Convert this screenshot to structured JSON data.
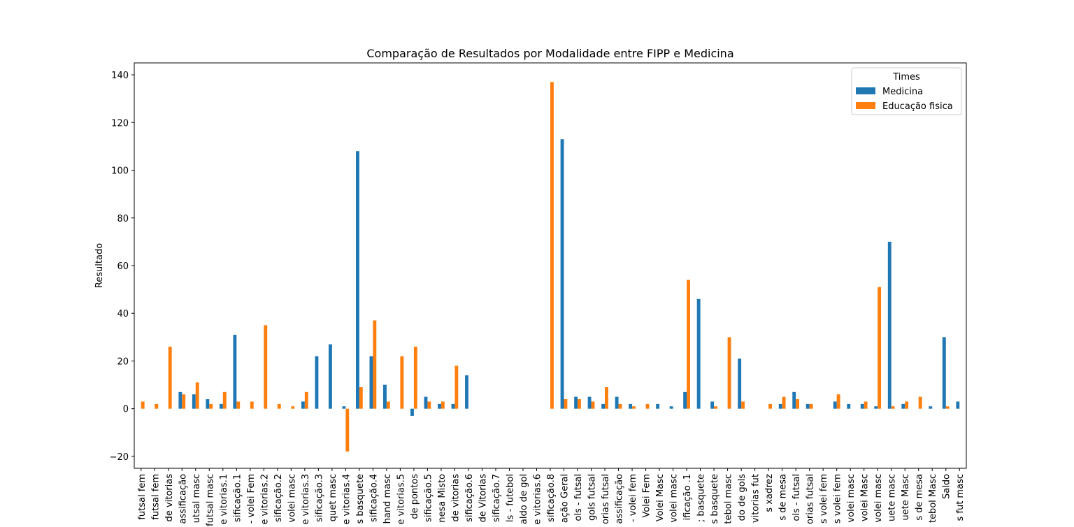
{
  "chart_data": {
    "type": "bar",
    "title": "Comparação de Resultados por Modalidade entre FIPP e Medicina",
    "xlabel": "",
    "ylabel": "Resultado",
    "ylim": [
      -25,
      145
    ],
    "yticks": [
      -20,
      0,
      20,
      40,
      60,
      80,
      100,
      120,
      140
    ],
    "grid": false,
    "legend": {
      "title": "Times",
      "position": "top-right"
    },
    "categories": [
      "futsal fem",
      "futsal fem",
      "de vitorias",
      "assificação",
      "utsal masc",
      "futsal masc",
      "e vitorias.1",
      "sificação.1",
      "- volei Fem",
      "e vitorias.2",
      "sificação.2",
      "volei masc",
      "e vitorias.3",
      "sificação.3",
      "quet masc",
      "e vitorias.4",
      "s basquete",
      "sificação.4",
      "hand masc",
      "e vitorias.5",
      "de pontos",
      "sificação.5",
      "nesa Misto",
      "de vitorias",
      "sificação.6",
      "de Vitorias",
      "sificação.7",
      "ls - futebol",
      "aldo de gol",
      "e vitorias.6",
      "sificação.8",
      "ação Geral",
      "ols - futsal",
      "gols futsal",
      "orias futsal",
      "assificação",
      "- volei fem",
      "Volei Fem",
      "Volei Masc",
      "volei masc",
      "ificação .1",
      "; basquete",
      "s basquete",
      "tebol masc",
      "do de gols",
      "vitorias fut",
      "s xadrez",
      "s de mesa",
      "ols - futsal",
      "orias futsal",
      "s volei fem",
      "s volei fem",
      "volei masc",
      "volei Masc",
      "volei masc",
      "uete masc",
      "uete Masc",
      "s de mesa",
      "tebol Masc",
      "Saldo",
      "s fut masc"
    ],
    "series": [
      {
        "name": "Medicina",
        "color": "#1f77b4",
        "values": [
          0,
          0,
          0,
          7,
          6,
          4,
          2,
          31,
          0,
          0,
          0,
          0,
          3,
          22,
          27,
          1,
          108,
          22,
          10,
          0,
          -3,
          5,
          2,
          2,
          14,
          0,
          0,
          0,
          0,
          0,
          0,
          113,
          5,
          5,
          2,
          5,
          2,
          0,
          2,
          1,
          7,
          46,
          3,
          0,
          21,
          0,
          0,
          2,
          7,
          2,
          0,
          3,
          2,
          2,
          1,
          70,
          2,
          0,
          1,
          30,
          3
        ]
      },
      {
        "name": "Educação fisica",
        "color": "#ff7f0e",
        "values": [
          3,
          2,
          26,
          6,
          11,
          2,
          7,
          3,
          3,
          35,
          2,
          1,
          7,
          0,
          0,
          -18,
          9,
          37,
          3,
          22,
          26,
          3,
          3,
          18,
          0,
          0,
          0,
          0,
          0,
          0,
          137,
          4,
          4,
          3,
          9,
          2,
          1,
          2,
          0,
          0,
          54,
          0,
          1,
          30,
          3,
          0,
          2,
          5,
          4,
          2,
          0,
          6,
          0,
          3,
          51,
          1,
          3,
          5,
          0,
          1,
          0
        ]
      }
    ]
  }
}
